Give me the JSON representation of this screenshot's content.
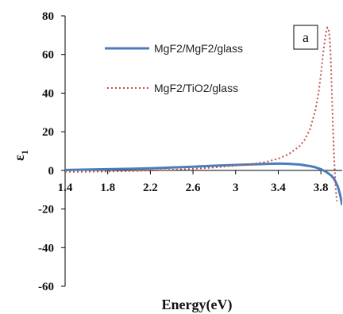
{
  "chart_data": {
    "type": "line",
    "xlabel": "Energy(eV)",
    "ylabel": "ε",
    "ylabel_subscript": "1",
    "panel_label": "a",
    "xlim": [
      1.4,
      4.0
    ],
    "ylim": [
      -60,
      80
    ],
    "x_ticks": [
      1.4,
      1.8,
      2.2,
      2.6,
      3,
      3.4,
      3.8
    ],
    "x_tick_labels": [
      "1.4",
      "1.8",
      "2.2",
      "2.6",
      "3",
      "3.4",
      "3.8"
    ],
    "y_ticks": [
      -60,
      -40,
      -20,
      0,
      20,
      40,
      60,
      80
    ],
    "y_tick_labels": [
      "-60",
      "-40",
      "-20",
      "0",
      "20",
      "40",
      "60",
      "80"
    ],
    "legend_position": "top-right",
    "grid": false,
    "series": [
      {
        "name": "MgF2/MgF2/glass",
        "style": "solid",
        "color": "#4a7ebb",
        "x": [
          1.4,
          1.6,
          1.8,
          2.0,
          2.2,
          2.4,
          2.6,
          2.8,
          3.0,
          3.2,
          3.3,
          3.4,
          3.5,
          3.6,
          3.7,
          3.75,
          3.8,
          3.85,
          3.9,
          3.93,
          3.96,
          3.98,
          4.0
        ],
        "y": [
          0.2,
          0.4,
          0.6,
          0.8,
          1.1,
          1.5,
          1.9,
          2.4,
          2.8,
          3.2,
          3.4,
          3.5,
          3.4,
          3.0,
          2.2,
          1.6,
          0.6,
          -0.8,
          -2.8,
          -5.0,
          -8.5,
          -12.5,
          -18.0
        ]
      },
      {
        "name": "MgF2/TiO2/glass",
        "style": "dotted",
        "color": "#c0504d",
        "x": [
          1.4,
          1.6,
          1.8,
          2.0,
          2.2,
          2.4,
          2.6,
          2.8,
          3.0,
          3.2,
          3.3,
          3.4,
          3.5,
          3.6,
          3.65,
          3.7,
          3.75,
          3.78,
          3.8,
          3.82,
          3.84,
          3.85,
          3.86,
          3.87,
          3.88,
          3.89,
          3.9,
          3.91,
          3.92,
          3.93,
          3.94,
          3.95
        ],
        "y": [
          -0.7,
          -0.7,
          -0.6,
          -0.4,
          -0.1,
          0.3,
          0.8,
          1.5,
          2.5,
          3.6,
          4.6,
          6.0,
          8.5,
          12.5,
          16.0,
          21.5,
          31.5,
          41.0,
          50.0,
          60.0,
          68.5,
          72.0,
          74.0,
          73.0,
          70.0,
          62.0,
          45.0,
          28.0,
          12.0,
          0.0,
          -10.0,
          -16.0
        ]
      }
    ]
  }
}
